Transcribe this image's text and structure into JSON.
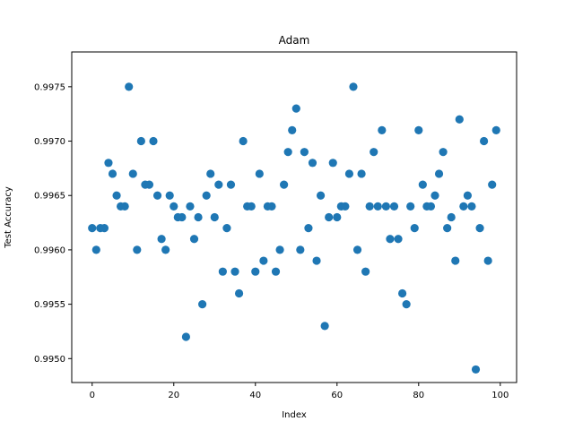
{
  "chart_data": {
    "type": "scatter",
    "title": "Adam",
    "xlabel": "Index",
    "ylabel": "Test Accuracy",
    "xlim": [
      -5,
      104
    ],
    "ylim": [
      0.99478,
      0.99782
    ],
    "xticks": [
      0,
      20,
      40,
      60,
      80,
      100
    ],
    "xtick_labels": [
      "0",
      "20",
      "40",
      "60",
      "80",
      "100"
    ],
    "yticks": [
      0.995,
      0.9955,
      0.996,
      0.9965,
      0.997,
      0.9975
    ],
    "ytick_labels": [
      "0.9950",
      "0.9955",
      "0.9960",
      "0.9965",
      "0.9970",
      "0.9975"
    ],
    "grid": false,
    "color": "#1f77b4",
    "series": [
      {
        "x": [
          0,
          1,
          2,
          3,
          4,
          5,
          6,
          7,
          8,
          9,
          10,
          11,
          12,
          13,
          14,
          15,
          16,
          17,
          18,
          19,
          20,
          21,
          22,
          23,
          24,
          25,
          26,
          27,
          28,
          29,
          30,
          31,
          32,
          33,
          34,
          35,
          36,
          37,
          38,
          39,
          40,
          41,
          42,
          43,
          44,
          45,
          46,
          47,
          48,
          49,
          50,
          51,
          52,
          53,
          54,
          55,
          56,
          57,
          58,
          59,
          60,
          61,
          62,
          63,
          64,
          65,
          66,
          67,
          68,
          69,
          70,
          71,
          72,
          73,
          74,
          75,
          76,
          77,
          78,
          79,
          80,
          81,
          82,
          83,
          84,
          85,
          86,
          87,
          88,
          89,
          90,
          91,
          92,
          93,
          94,
          95,
          96,
          97,
          98,
          99
        ],
        "y": [
          0.9962,
          0.996,
          0.9962,
          0.9962,
          0.9968,
          0.9967,
          0.9965,
          0.9964,
          0.9964,
          0.9975,
          0.9967,
          0.996,
          0.997,
          0.9966,
          0.9966,
          0.997,
          0.9965,
          0.9961,
          0.996,
          0.9965,
          0.9964,
          0.9963,
          0.9963,
          0.9952,
          0.9964,
          0.9961,
          0.9963,
          0.9955,
          0.9965,
          0.9967,
          0.9963,
          0.9966,
          0.9958,
          0.9962,
          0.9966,
          0.9958,
          0.9956,
          0.997,
          0.9964,
          0.9964,
          0.9958,
          0.9967,
          0.9959,
          0.9964,
          0.9964,
          0.9958,
          0.996,
          0.9966,
          0.9969,
          0.9971,
          0.9973,
          0.996,
          0.9969,
          0.9962,
          0.9968,
          0.9959,
          0.9965,
          0.9953,
          0.9963,
          0.9968,
          0.9963,
          0.9964,
          0.9964,
          0.9967,
          0.9975,
          0.996,
          0.9967,
          0.9958,
          0.9964,
          0.9969,
          0.9964,
          0.9971,
          0.9964,
          0.9961,
          0.9964,
          0.9961,
          0.9956,
          0.9955,
          0.9964,
          0.9962,
          0.9971,
          0.9966,
          0.9964,
          0.9964,
          0.9965,
          0.9967,
          0.9969,
          0.9962,
          0.9963,
          0.9959,
          0.9972,
          0.9964,
          0.9965,
          0.9964,
          0.9949,
          0.9962,
          0.997,
          0.9959,
          0.9966,
          0.9971
        ]
      }
    ]
  }
}
